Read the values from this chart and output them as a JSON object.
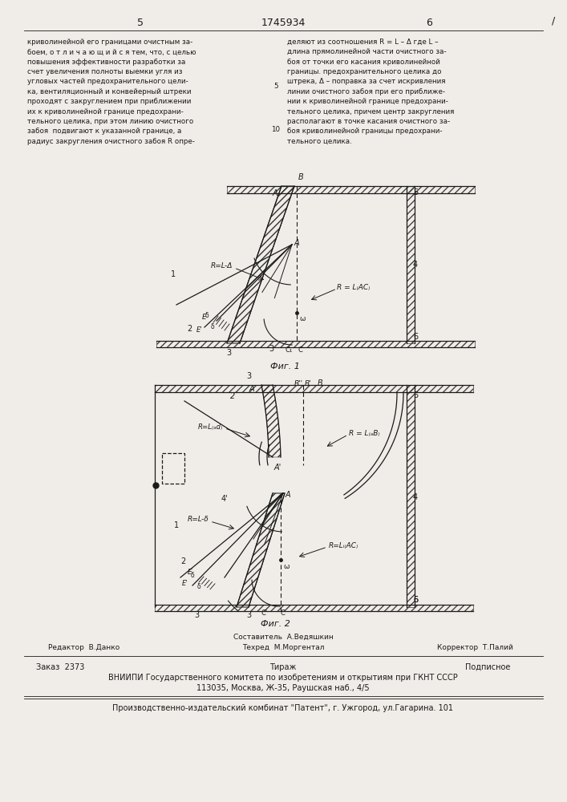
{
  "page_number_left": "5",
  "page_number_center": "1745934",
  "page_number_right": "6",
  "text_left": "криволинейной его границами очистным за-\nбоем, о т л и ч а ю щ и й с я тем, что, с целью\nповышения эффективности разработки за\nсчет увеличения полноты выемки угля из\nугловых частей предохранительного цели-\nка, вентиляционный и конвейерный штреки\nпроходят с закруглением при приближении\nих к криволинейной границе предохрани-\nтельного целика, при этом линию очистного\nзабоя  подвигают к указанной границе, а\nрадиус закругления очистного забоя R опре-",
  "text_right": "деляют из соотношения R = L – Δ где L –\nдлина прямолинейной части очистного за-\nбоя от точки его касания криволинейной\nграницы. предохранительного целика до\nштрека, Δ – поправка за счет искривления\nлинии очистного забоя при его приближе-\nнии к криволинейной границе предохрани-\nтельного целика, причем центр закругления\nрасполагают в точке касания очистного за-\nбоя криволинейной границы предохрани-\nтельного целика.",
  "fig1_caption": "Фиг. 1",
  "fig2_caption": "Фиг. 2",
  "editor_line": "Редактор  В.Данко",
  "sostavitel_line": "Составитель  А.Ведяшкин",
  "tekhred_line": "Техред  М.Моргентал",
  "korrektor_line": "Корректор  Т.Палий",
  "zakaz_line": "Заказ  2373",
  "tirazh_line": "Тираж",
  "podpisnoe_line": "Подписное",
  "vniiipi_line": "ВНИИПИ Государственного комитета по изобретениям и открытиям при ГКНТ СССР",
  "address_line": "113035, Москва, Ж-35, Раушская наб., 4/5",
  "kombinat_line": "Производственно-издательский комбинат \"Патент\", г. Ужгород, ул.Гагарина. 101",
  "bg_color": "#f0ede8",
  "text_color": "#1a1a1a"
}
